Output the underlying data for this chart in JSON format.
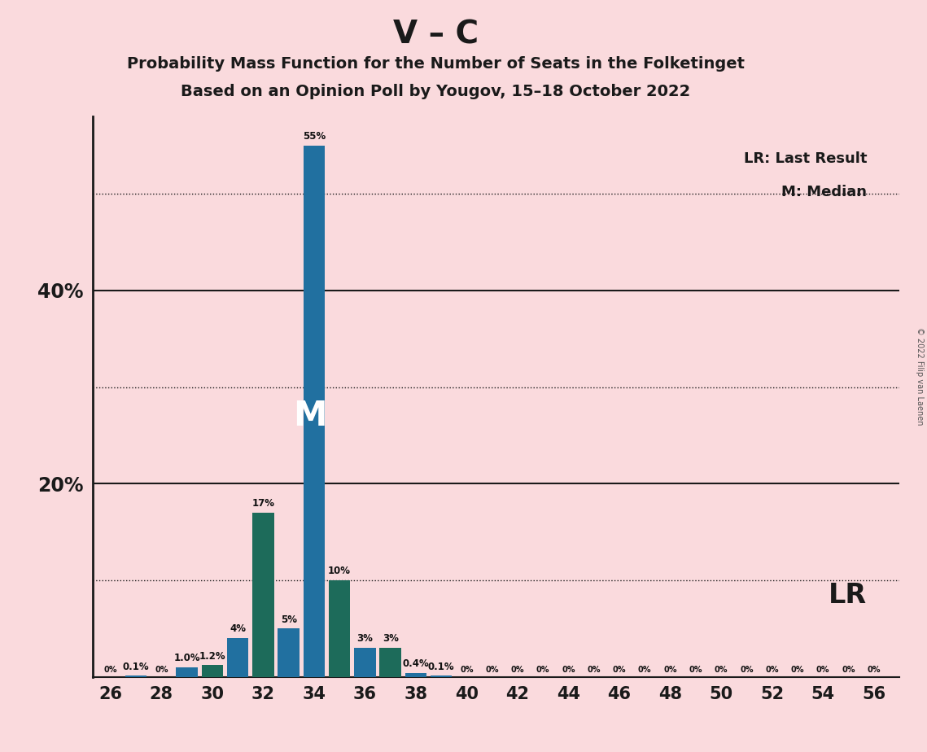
{
  "title_main": "V – C",
  "title_sub1": "Probability Mass Function for the Number of Seats in the Folketinget",
  "title_sub2": "Based on an Opinion Poll by Yougov, 15–18 October 2022",
  "copyright": "© 2022 Filip van Laenen",
  "seats": [
    26,
    27,
    28,
    29,
    30,
    31,
    32,
    33,
    34,
    35,
    36,
    37,
    38,
    39,
    40,
    41,
    42,
    43,
    44,
    45,
    46,
    47,
    48,
    49,
    50,
    51,
    52,
    53,
    54,
    55,
    56
  ],
  "values": [
    0.0,
    0.1,
    0.0,
    1.0,
    1.2,
    4.0,
    17.0,
    5.0,
    55.0,
    10.0,
    3.0,
    3.0,
    0.4,
    0.1,
    0.0,
    0.0,
    0.0,
    0.0,
    0.0,
    0.0,
    0.0,
    0.0,
    0.0,
    0.0,
    0.0,
    0.0,
    0.0,
    0.0,
    0.0,
    0.0,
    0.0
  ],
  "bar_colors": [
    "#2170a0",
    "#2170a0",
    "#2170a0",
    "#2170a0",
    "#1d6b5a",
    "#2170a0",
    "#1d6b5a",
    "#2170a0",
    "#2170a0",
    "#1d6b5a",
    "#2170a0",
    "#1d6b5a",
    "#2170a0",
    "#2170a0",
    "#2170a0",
    "#2170a0",
    "#2170a0",
    "#2170a0",
    "#2170a0",
    "#2170a0",
    "#2170a0",
    "#2170a0",
    "#2170a0",
    "#2170a0",
    "#2170a0",
    "#2170a0",
    "#2170a0",
    "#2170a0",
    "#2170a0",
    "#2170a0",
    "#2170a0"
  ],
  "labels": [
    "0%",
    "0.1%",
    "0%",
    "1.0%",
    "1.2%",
    "4%",
    "17%",
    "5%",
    "55%",
    "10%",
    "3%",
    "3%",
    "0.4%",
    "0.1%",
    "0%",
    "0%",
    "0%",
    "0%",
    "0%",
    "0%",
    "0%",
    "0%",
    "0%",
    "0%",
    "0%",
    "0%",
    "0%",
    "0%",
    "0%",
    "0%",
    "0%"
  ],
  "median_seat": 34,
  "lr_seat": 36,
  "ylim_max": 58,
  "solid_gridlines": [
    20,
    40
  ],
  "dotted_gridlines": [
    10,
    30,
    50
  ],
  "background_color": "#fadadd",
  "legend_lr": "LR: Last Result",
  "legend_m": "M: Median",
  "lr_label": "LR",
  "m_label": "M",
  "ytick_positions": [
    20,
    40
  ],
  "ytick_labels": [
    "20%",
    "40%"
  ],
  "xtick_positions": [
    26,
    28,
    30,
    32,
    34,
    36,
    38,
    40,
    42,
    44,
    46,
    48,
    50,
    52,
    54,
    56
  ]
}
